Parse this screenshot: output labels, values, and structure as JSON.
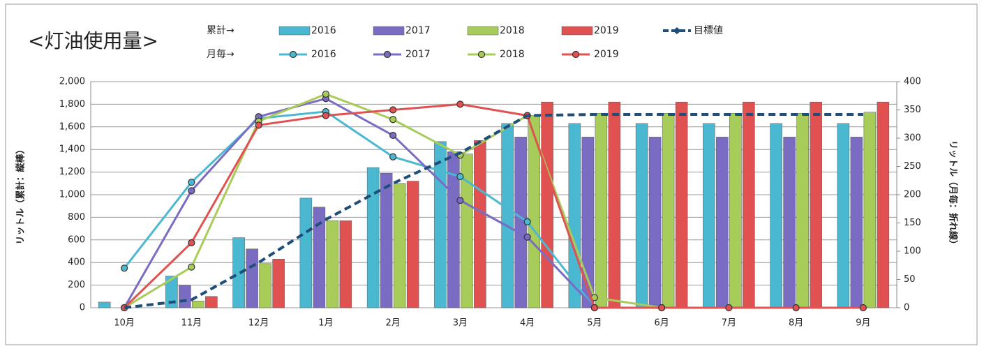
{
  "chart_data": {
    "type": "combo",
    "title": "<灯油使用量>",
    "legend_groups": [
      "累計→",
      "月毎→"
    ],
    "categories": [
      "10月",
      "11月",
      "12月",
      "1月",
      "2月",
      "3月",
      "4月",
      "5月",
      "6月",
      "7月",
      "8月",
      "9月"
    ],
    "ylabel": "リットル（累計：縦棒）",
    "y2label": "リットル（月毎：折れ線）",
    "ylim": [
      0,
      2000
    ],
    "yticks": [
      0,
      200,
      400,
      600,
      800,
      {
        "value": 1000,
        "label": "1,000"
      },
      {
        "value": 1200,
        "label": "1,200"
      },
      {
        "value": 1400,
        "label": "1,400"
      },
      {
        "value": 1600,
        "label": "1,600"
      },
      {
        "value": 1800,
        "label": "1,800"
      },
      {
        "value": 2000,
        "label": "2,000"
      }
    ],
    "y2lim": [
      0,
      400
    ],
    "y2ticks": [
      0,
      50,
      100,
      150,
      200,
      250,
      300,
      350,
      400
    ],
    "grid": true,
    "series": [
      {
        "name": "2016",
        "kind": "bar",
        "color": "#4bb8d2",
        "values": [
          50,
          280,
          620,
          970,
          1240,
          1470,
          1630,
          1630,
          1630,
          1630,
          1630,
          1630
        ]
      },
      {
        "name": "2017",
        "kind": "bar",
        "color": "#7a6cc2",
        "values": [
          0,
          200,
          520,
          890,
          1190,
          1380,
          1510,
          1510,
          1510,
          1510,
          1510,
          1510
        ]
      },
      {
        "name": "2018",
        "kind": "bar",
        "color": "#a8cc5a",
        "values": [
          0,
          60,
          390,
          770,
          1100,
          1360,
          1700,
          1720,
          1720,
          1720,
          1720,
          1730
        ]
      },
      {
        "name": "2019",
        "kind": "bar",
        "color": "#e05252",
        "values": [
          0,
          100,
          430,
          770,
          1120,
          1480,
          1820,
          1820,
          1820,
          1820,
          1820,
          1820
        ]
      },
      {
        "name": "目標値",
        "kind": "target",
        "color": "#1f4e79",
        "values": [
          0,
          70,
          400,
          780,
          1100,
          1370,
          1700,
          1710,
          1710,
          1710,
          1710,
          1710
        ]
      },
      {
        "name": "2016",
        "kind": "line",
        "axis": "y2",
        "color": "#4bb8d2",
        "values": [
          70,
          222,
          335,
          347,
          267,
          232,
          152,
          0,
          null,
          null,
          null,
          null
        ]
      },
      {
        "name": "2017",
        "kind": "line",
        "axis": "y2",
        "color": "#7a6cc2",
        "values": [
          0,
          207,
          338,
          370,
          305,
          190,
          125,
          0,
          null,
          null,
          null,
          null
        ]
      },
      {
        "name": "2018",
        "kind": "line",
        "axis": "y2",
        "color": "#a8cc5a",
        "values": [
          0,
          72,
          330,
          378,
          333,
          270,
          340,
          18,
          0,
          null,
          null,
          null
        ]
      },
      {
        "name": "2019",
        "kind": "line",
        "axis": "y2",
        "color": "#e05252",
        "values": [
          0,
          115,
          323,
          340,
          350,
          360,
          340,
          0,
          0,
          0,
          0,
          0
        ]
      }
    ]
  }
}
